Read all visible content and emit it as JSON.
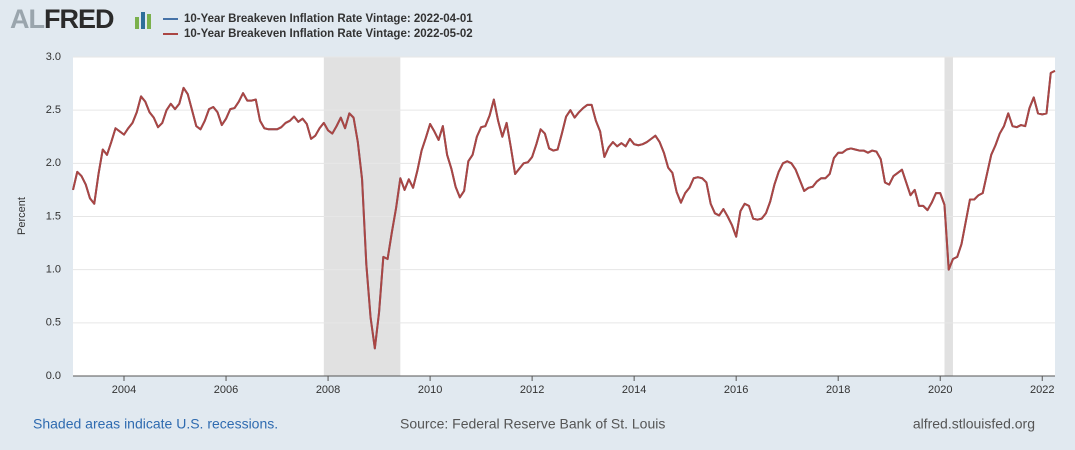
{
  "logo_prefix": "AL",
  "logo_main": "FRED",
  "footer": {
    "left": "Shaded areas indicate U.S. recessions.",
    "center": "Source: Federal Reserve Bank of St. Louis",
    "right": "alfred.stlouisfed.org"
  },
  "chart_data": {
    "type": "line",
    "ylabel": "Percent",
    "xlim": [
      "2003-01",
      "2022-04"
    ],
    "xticks": [
      {
        "value": "2004-01",
        "label": "2004"
      },
      {
        "value": "2006-01",
        "label": "2006"
      },
      {
        "value": "2008-01",
        "label": "2008"
      },
      {
        "value": "2010-01",
        "label": "2010"
      },
      {
        "value": "2012-01",
        "label": "2012"
      },
      {
        "value": "2014-01",
        "label": "2014"
      },
      {
        "value": "2016-01",
        "label": "2016"
      },
      {
        "value": "2018-01",
        "label": "2018"
      },
      {
        "value": "2020-01",
        "label": "2020"
      },
      {
        "value": "2022-01",
        "label": "2022"
      }
    ],
    "ylim": [
      0,
      3
    ],
    "yticks": [
      {
        "value": 0,
        "label": "0.0"
      },
      {
        "value": 0.5,
        "label": "0.5"
      },
      {
        "value": 1,
        "label": "1.0"
      },
      {
        "value": 1.5,
        "label": "1.5"
      },
      {
        "value": 2,
        "label": "2.0"
      },
      {
        "value": 2.5,
        "label": "2.5"
      },
      {
        "value": 3,
        "label": "3.0"
      }
    ],
    "grid": true,
    "recessions": [
      {
        "start": "2007-12",
        "end": "2009-06"
      },
      {
        "start": "2020-02",
        "end": "2020-04"
      }
    ],
    "recession_color": "#e1e1e1",
    "x": [
      "2003-01",
      "2003-02",
      "2003-03",
      "2003-04",
      "2003-05",
      "2003-06",
      "2003-07",
      "2003-08",
      "2003-09",
      "2003-10",
      "2003-11",
      "2003-12",
      "2004-01",
      "2004-02",
      "2004-03",
      "2004-04",
      "2004-05",
      "2004-06",
      "2004-07",
      "2004-08",
      "2004-09",
      "2004-10",
      "2004-11",
      "2004-12",
      "2005-01",
      "2005-02",
      "2005-03",
      "2005-04",
      "2005-05",
      "2005-06",
      "2005-07",
      "2005-08",
      "2005-09",
      "2005-10",
      "2005-11",
      "2005-12",
      "2006-01",
      "2006-02",
      "2006-03",
      "2006-04",
      "2006-05",
      "2006-06",
      "2006-07",
      "2006-08",
      "2006-09",
      "2006-10",
      "2006-11",
      "2006-12",
      "2007-01",
      "2007-02",
      "2007-03",
      "2007-04",
      "2007-05",
      "2007-06",
      "2007-07",
      "2007-08",
      "2007-09",
      "2007-10",
      "2007-11",
      "2007-12",
      "2008-01",
      "2008-02",
      "2008-03",
      "2008-04",
      "2008-05",
      "2008-06",
      "2008-07",
      "2008-08",
      "2008-09",
      "2008-10",
      "2008-11",
      "2008-12",
      "2009-01",
      "2009-02",
      "2009-03",
      "2009-04",
      "2009-05",
      "2009-06",
      "2009-07",
      "2009-08",
      "2009-09",
      "2009-10",
      "2009-11",
      "2009-12",
      "2010-01",
      "2010-02",
      "2010-03",
      "2010-04",
      "2010-05",
      "2010-06",
      "2010-07",
      "2010-08",
      "2010-09",
      "2010-10",
      "2010-11",
      "2010-12",
      "2011-01",
      "2011-02",
      "2011-03",
      "2011-04",
      "2011-05",
      "2011-06",
      "2011-07",
      "2011-08",
      "2011-09",
      "2011-10",
      "2011-11",
      "2011-12",
      "2012-01",
      "2012-02",
      "2012-03",
      "2012-04",
      "2012-05",
      "2012-06",
      "2012-07",
      "2012-08",
      "2012-09",
      "2012-10",
      "2012-11",
      "2012-12",
      "2013-01",
      "2013-02",
      "2013-03",
      "2013-04",
      "2013-05",
      "2013-06",
      "2013-07",
      "2013-08",
      "2013-09",
      "2013-10",
      "2013-11",
      "2013-12",
      "2014-01",
      "2014-02",
      "2014-03",
      "2014-04",
      "2014-05",
      "2014-06",
      "2014-07",
      "2014-08",
      "2014-09",
      "2014-10",
      "2014-11",
      "2014-12",
      "2015-01",
      "2015-02",
      "2015-03",
      "2015-04",
      "2015-05",
      "2015-06",
      "2015-07",
      "2015-08",
      "2015-09",
      "2015-10",
      "2015-11",
      "2015-12",
      "2016-01",
      "2016-02",
      "2016-03",
      "2016-04",
      "2016-05",
      "2016-06",
      "2016-07",
      "2016-08",
      "2016-09",
      "2016-10",
      "2016-11",
      "2016-12",
      "2017-01",
      "2017-02",
      "2017-03",
      "2017-04",
      "2017-05",
      "2017-06",
      "2017-07",
      "2017-08",
      "2017-09",
      "2017-10",
      "2017-11",
      "2017-12",
      "2018-01",
      "2018-02",
      "2018-03",
      "2018-04",
      "2018-05",
      "2018-06",
      "2018-07",
      "2018-08",
      "2018-09",
      "2018-10",
      "2018-11",
      "2018-12",
      "2019-01",
      "2019-02",
      "2019-03",
      "2019-04",
      "2019-05",
      "2019-06",
      "2019-07",
      "2019-08",
      "2019-09",
      "2019-10",
      "2019-11",
      "2019-12",
      "2020-01",
      "2020-02",
      "2020-03",
      "2020-04",
      "2020-05",
      "2020-06",
      "2020-07",
      "2020-08",
      "2020-09",
      "2020-10",
      "2020-11",
      "2020-12",
      "2021-01",
      "2021-02",
      "2021-03",
      "2021-04",
      "2021-05",
      "2021-06",
      "2021-07",
      "2021-08",
      "2021-09",
      "2021-10",
      "2021-11",
      "2021-12",
      "2022-01",
      "2022-02",
      "2022-03",
      "2022-04"
    ],
    "series": [
      {
        "name": "10-Year Breakeven Inflation Rate Vintage: 2022-04-01",
        "color": "#4572a7",
        "values": [
          1.75,
          1.92,
          1.88,
          1.8,
          1.67,
          1.62,
          1.9,
          2.13,
          2.08,
          2.2,
          2.33,
          2.3,
          2.27,
          2.33,
          2.38,
          2.48,
          2.63,
          2.58,
          2.48,
          2.43,
          2.34,
          2.38,
          2.5,
          2.56,
          2.51,
          2.56,
          2.71,
          2.65,
          2.5,
          2.35,
          2.32,
          2.4,
          2.51,
          2.53,
          2.48,
          2.36,
          2.42,
          2.51,
          2.52,
          2.58,
          2.66,
          2.59,
          2.59,
          2.6,
          2.4,
          2.33,
          2.32,
          2.32,
          2.32,
          2.34,
          2.38,
          2.4,
          2.44,
          2.39,
          2.42,
          2.37,
          2.23,
          2.26,
          2.33,
          2.38,
          2.31,
          2.28,
          2.35,
          2.43,
          2.33,
          2.47,
          2.43,
          2.2,
          1.85,
          1.05,
          0.55,
          0.26,
          0.6,
          1.12,
          1.1,
          1.35,
          1.58,
          1.86,
          1.75,
          1.85,
          1.77,
          1.93,
          2.12,
          2.24,
          2.37,
          2.3,
          2.22,
          2.35,
          2.08,
          1.95,
          1.78,
          1.68,
          1.74,
          2.02,
          2.08,
          2.25,
          2.34,
          2.35,
          2.45,
          2.6,
          2.4,
          2.25,
          2.38,
          2.15,
          1.9,
          1.95,
          2.0,
          2.01,
          2.06,
          2.18,
          2.32,
          2.28,
          2.14,
          2.12,
          2.13,
          2.28,
          2.44,
          2.5,
          2.43,
          2.48,
          2.52,
          2.55,
          2.55,
          2.4,
          2.3,
          2.06,
          2.15,
          2.2,
          2.16,
          2.19,
          2.16,
          2.23,
          2.18,
          2.17,
          2.18,
          2.2,
          2.23,
          2.26,
          2.2,
          2.1,
          1.96,
          1.91,
          1.73,
          1.63,
          1.72,
          1.77,
          1.86,
          1.87,
          1.86,
          1.82,
          1.62,
          1.53,
          1.51,
          1.57,
          1.5,
          1.42,
          1.31,
          1.55,
          1.62,
          1.6,
          1.48,
          1.47,
          1.48,
          1.53,
          1.64,
          1.8,
          1.92,
          2.0,
          2.02,
          2.0,
          1.94,
          1.84,
          1.74,
          1.77,
          1.78,
          1.83,
          1.86,
          1.86,
          1.9,
          2.05,
          2.1,
          2.1,
          2.13,
          2.14,
          2.13,
          2.12,
          2.12,
          2.1,
          2.12,
          2.11,
          2.04,
          1.82,
          1.8,
          1.88,
          1.91,
          1.94,
          1.82,
          1.7,
          1.75,
          1.6,
          1.6,
          1.56,
          1.63,
          1.72,
          1.72,
          1.61,
          1.0,
          1.1,
          1.12,
          1.24,
          1.45,
          1.66,
          1.66,
          1.7,
          1.72,
          1.9,
          2.08,
          2.17,
          2.28,
          2.35,
          2.47,
          2.35,
          2.34,
          2.36,
          2.35,
          2.52,
          2.62,
          2.47,
          2.46,
          2.47,
          2.85,
          null
        ]
      },
      {
        "name": "10-Year Breakeven Inflation Rate Vintage: 2022-05-02",
        "color": "#aa4643",
        "values": [
          1.75,
          1.92,
          1.88,
          1.8,
          1.67,
          1.62,
          1.9,
          2.13,
          2.08,
          2.2,
          2.33,
          2.3,
          2.27,
          2.33,
          2.38,
          2.48,
          2.63,
          2.58,
          2.48,
          2.43,
          2.34,
          2.38,
          2.5,
          2.56,
          2.51,
          2.56,
          2.71,
          2.65,
          2.5,
          2.35,
          2.32,
          2.4,
          2.51,
          2.53,
          2.48,
          2.36,
          2.42,
          2.51,
          2.52,
          2.58,
          2.66,
          2.59,
          2.59,
          2.6,
          2.4,
          2.33,
          2.32,
          2.32,
          2.32,
          2.34,
          2.38,
          2.4,
          2.44,
          2.39,
          2.42,
          2.37,
          2.23,
          2.26,
          2.33,
          2.38,
          2.31,
          2.28,
          2.35,
          2.43,
          2.33,
          2.47,
          2.43,
          2.2,
          1.85,
          1.05,
          0.55,
          0.26,
          0.6,
          1.12,
          1.1,
          1.35,
          1.58,
          1.86,
          1.75,
          1.85,
          1.77,
          1.93,
          2.12,
          2.24,
          2.37,
          2.3,
          2.22,
          2.35,
          2.08,
          1.95,
          1.78,
          1.68,
          1.74,
          2.02,
          2.08,
          2.25,
          2.34,
          2.35,
          2.45,
          2.6,
          2.4,
          2.25,
          2.38,
          2.15,
          1.9,
          1.95,
          2.0,
          2.01,
          2.06,
          2.18,
          2.32,
          2.28,
          2.14,
          2.12,
          2.13,
          2.28,
          2.44,
          2.5,
          2.43,
          2.48,
          2.52,
          2.55,
          2.55,
          2.4,
          2.3,
          2.06,
          2.15,
          2.2,
          2.16,
          2.19,
          2.16,
          2.23,
          2.18,
          2.17,
          2.18,
          2.2,
          2.23,
          2.26,
          2.2,
          2.1,
          1.96,
          1.91,
          1.73,
          1.63,
          1.72,
          1.77,
          1.86,
          1.87,
          1.86,
          1.82,
          1.62,
          1.53,
          1.51,
          1.57,
          1.5,
          1.42,
          1.31,
          1.55,
          1.62,
          1.6,
          1.48,
          1.47,
          1.48,
          1.53,
          1.64,
          1.8,
          1.92,
          2.0,
          2.02,
          2.0,
          1.94,
          1.84,
          1.74,
          1.77,
          1.78,
          1.83,
          1.86,
          1.86,
          1.9,
          2.05,
          2.1,
          2.1,
          2.13,
          2.14,
          2.13,
          2.12,
          2.12,
          2.1,
          2.12,
          2.11,
          2.04,
          1.82,
          1.8,
          1.88,
          1.91,
          1.94,
          1.82,
          1.7,
          1.75,
          1.6,
          1.6,
          1.56,
          1.63,
          1.72,
          1.72,
          1.61,
          1.0,
          1.1,
          1.12,
          1.24,
          1.45,
          1.66,
          1.66,
          1.7,
          1.72,
          1.9,
          2.08,
          2.17,
          2.28,
          2.35,
          2.47,
          2.35,
          2.34,
          2.36,
          2.35,
          2.52,
          2.62,
          2.47,
          2.46,
          2.47,
          2.85,
          2.87
        ]
      }
    ]
  }
}
